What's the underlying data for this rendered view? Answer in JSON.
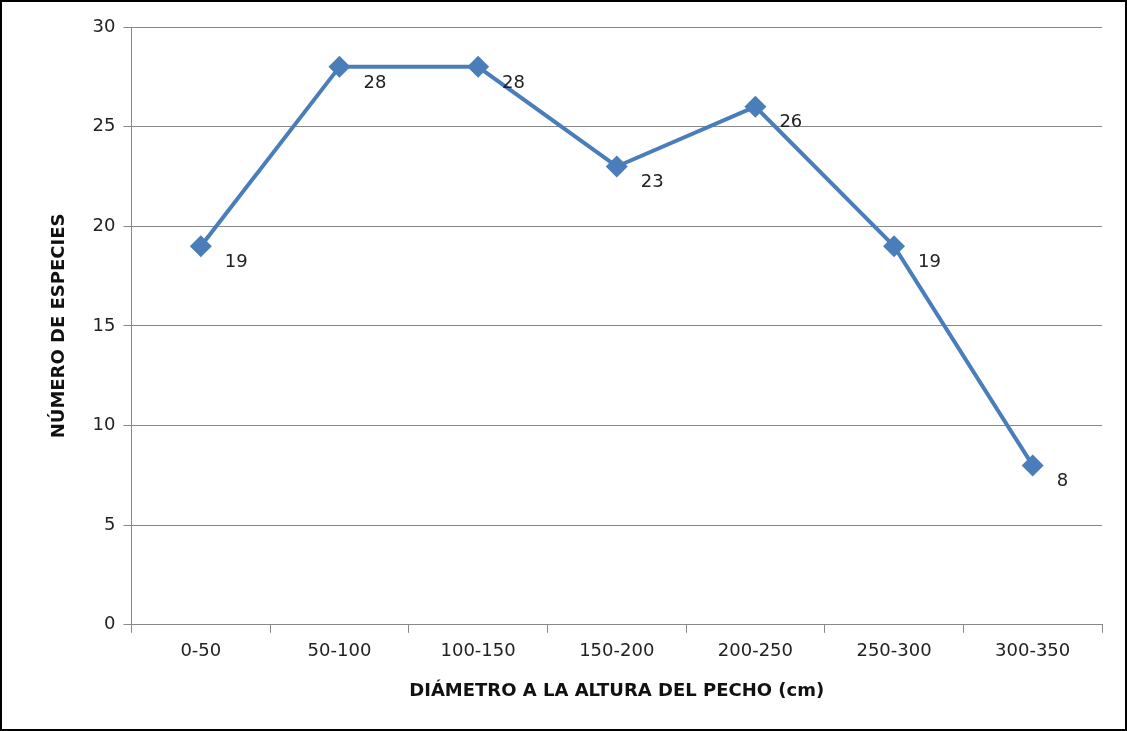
{
  "chart_data": {
    "type": "line",
    "xlabel": "DIÁMETRO A LA ALTURA DEL PECHO (cm)",
    "ylabel": "NÚMERO DE ESPECIES",
    "categories": [
      "0-50",
      "50-100",
      "100-150",
      "150-200",
      "200-250",
      "250-300",
      "300-350"
    ],
    "series": [
      {
        "color": "#4a7ebb",
        "values": [
          19,
          28,
          28,
          23,
          26,
          19,
          8
        ]
      }
    ],
    "ylim": [
      0,
      30
    ],
    "yticks": [
      0,
      5,
      10,
      15,
      20,
      25,
      30
    ],
    "grid": "y",
    "marker": "diamond",
    "line_style": "solid",
    "data_labels": true,
    "legend": false
  }
}
